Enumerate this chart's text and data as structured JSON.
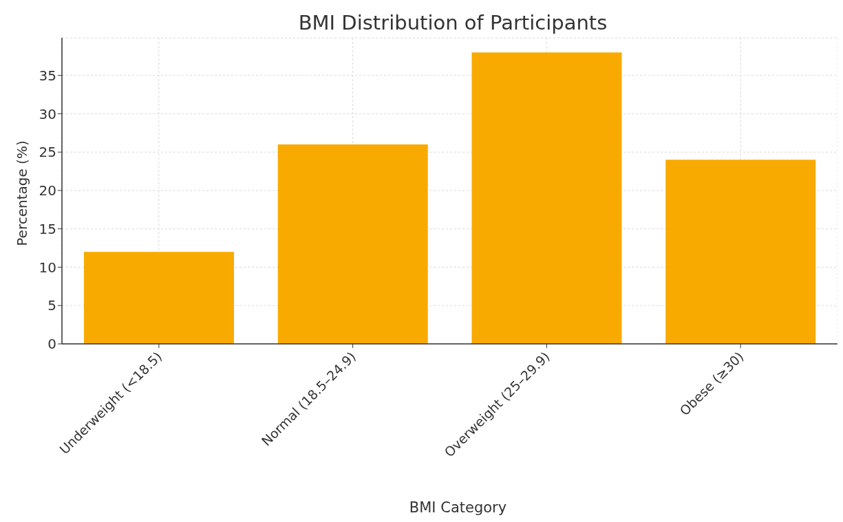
{
  "chart_data": {
    "type": "bar",
    "title": "BMI Distribution of Participants",
    "xlabel": "BMI Category",
    "ylabel": "Percentage (%)",
    "categories": [
      "Underweight (<18.5)",
      "Normal (18.5–24.9)",
      "Overweight (25–29.9)",
      "Obese (≥30)"
    ],
    "values": [
      12,
      26,
      38,
      24
    ],
    "color": "#f9aa00",
    "ylim": [
      0,
      39.9
    ],
    "yticks": [
      0,
      5,
      10,
      15,
      20,
      25,
      30,
      35
    ],
    "grid": true
  }
}
